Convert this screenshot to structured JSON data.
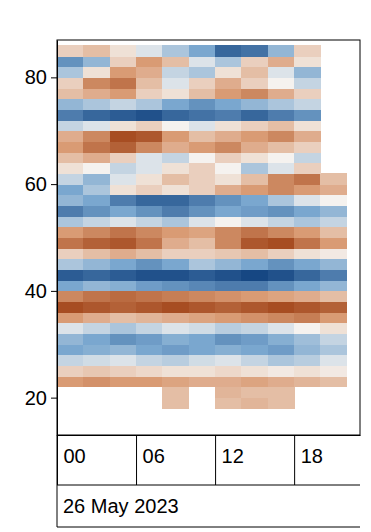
{
  "chart_data": {
    "type": "heatmap",
    "xlabel": "26 May 2023",
    "xlim": [
      0,
      23
    ],
    "xticks": [
      {
        "value": 0,
        "label": "00"
      },
      {
        "value": 6,
        "label": "06"
      },
      {
        "value": 12,
        "label": "12"
      },
      {
        "value": 18,
        "label": "18"
      }
    ],
    "ylim": [
      13,
      87
    ],
    "yticks": [
      20,
      40,
      60,
      80
    ],
    "zlim": [
      -1,
      1
    ],
    "x": [
      1,
      3,
      5,
      7,
      9,
      11,
      13,
      15,
      17,
      19,
      21
    ],
    "y": [
      19,
      21,
      23,
      25,
      27,
      29,
      31,
      33,
      35,
      37,
      39,
      41,
      43,
      45,
      47,
      49,
      51,
      53,
      55,
      57,
      59,
      61,
      63,
      65,
      67,
      69,
      71,
      73,
      75,
      77,
      79,
      81,
      83,
      85
    ],
    "values": [
      [
        null,
        null,
        null,
        null,
        0.3,
        null,
        0.3,
        0.35,
        0.3,
        null,
        null
      ],
      [
        null,
        null,
        null,
        null,
        0.3,
        null,
        0.35,
        0.3,
        0.3,
        null,
        null
      ],
      [
        0.5,
        0.55,
        0.5,
        0.5,
        0.45,
        0.4,
        0.4,
        0.45,
        0.4,
        0.35,
        0.3
      ],
      [
        0.2,
        0.25,
        0.2,
        0.15,
        0.1,
        0.1,
        0.15,
        0.1,
        0.05,
        0.1,
        0.05
      ],
      [
        -0.2,
        -0.15,
        -0.1,
        -0.2,
        -0.25,
        -0.15,
        -0.1,
        -0.2,
        -0.3,
        -0.25,
        -0.1
      ],
      [
        -0.5,
        -0.45,
        -0.4,
        -0.5,
        -0.55,
        -0.5,
        -0.45,
        -0.5,
        -0.55,
        -0.4,
        -0.3
      ],
      [
        -0.4,
        -0.5,
        -0.6,
        -0.55,
        -0.45,
        -0.5,
        -0.6,
        -0.55,
        -0.45,
        -0.35,
        -0.2
      ],
      [
        -0.1,
        -0.2,
        -0.3,
        -0.2,
        -0.1,
        -0.15,
        -0.25,
        -0.2,
        -0.1,
        0,
        0.1
      ],
      [
        0.5,
        0.4,
        0.3,
        0.35,
        0.4,
        0.45,
        0.5,
        0.55,
        0.6,
        0.65,
        0.5
      ],
      [
        0.9,
        0.85,
        0.8,
        0.85,
        0.9,
        0.85,
        0.8,
        0.85,
        0.9,
        0.85,
        0.8
      ],
      [
        0.6,
        0.7,
        0.75,
        0.7,
        0.65,
        0.6,
        0.55,
        0.5,
        0.45,
        0.4,
        0.3
      ],
      [
        -0.5,
        -0.4,
        -0.45,
        -0.55,
        -0.6,
        -0.65,
        -0.7,
        -0.7,
        -0.6,
        -0.5,
        -0.4
      ],
      [
        -0.85,
        -0.8,
        -0.85,
        -0.9,
        -0.9,
        -0.85,
        -0.9,
        -0.95,
        -0.9,
        -0.8,
        -0.7
      ],
      [
        -0.3,
        -0.4,
        -0.5,
        -0.6,
        -0.5,
        -0.3,
        -0.4,
        -0.5,
        -0.6,
        -0.5,
        -0.4
      ],
      [
        0.2,
        0.3,
        0.4,
        0.3,
        0.2,
        0.2,
        0.25,
        0.3,
        0.2,
        0.1,
        0.05
      ],
      [
        0.7,
        0.8,
        0.85,
        0.7,
        0.4,
        0.3,
        0.6,
        0.85,
        0.9,
        0.7,
        0.5
      ],
      [
        0.5,
        0.6,
        0.7,
        0.6,
        0.5,
        0.45,
        0.6,
        0.7,
        0.6,
        0.5,
        0.3
      ],
      [
        -0.3,
        -0.2,
        -0.1,
        -0.2,
        -0.3,
        -0.1,
        0,
        -0.1,
        -0.2,
        -0.3,
        -0.2
      ],
      [
        -0.7,
        -0.6,
        -0.5,
        -0.6,
        -0.7,
        -0.6,
        -0.5,
        -0.55,
        -0.6,
        -0.5,
        -0.4
      ],
      [
        -0.4,
        -0.5,
        -0.7,
        -0.8,
        -0.8,
        -0.7,
        -0.6,
        -0.5,
        -0.3,
        -0.1,
        0
      ],
      [
        -0.5,
        -0.3,
        0.1,
        0.2,
        0.1,
        0.2,
        0.4,
        0.5,
        0.6,
        0.5,
        0.4
      ],
      [
        -0.2,
        -0.4,
        -0.1,
        0.1,
        0.3,
        0.2,
        0.1,
        0.3,
        0.6,
        0.7,
        0.3
      ],
      [
        0.1,
        0,
        -0.2,
        -0.1,
        0.1,
        0.2,
        0,
        -0.3,
        -0.1,
        0.2,
        null
      ],
      [
        0.3,
        0.4,
        0.2,
        -0.1,
        -0.2,
        0,
        0.2,
        0.1,
        0,
        -0.2,
        null
      ],
      [
        0.5,
        0.7,
        0.8,
        0.6,
        0.4,
        0.5,
        0.6,
        0.4,
        0.3,
        0.2,
        null
      ],
      [
        0.4,
        0.6,
        0.9,
        0.85,
        0.5,
        0.3,
        0.4,
        0.5,
        0.6,
        0.4,
        null
      ],
      [
        -0.2,
        -0.1,
        0.1,
        0.2,
        0,
        -0.1,
        0.1,
        0.2,
        0.3,
        0.1,
        null
      ],
      [
        -0.7,
        -0.8,
        -0.85,
        -0.9,
        -0.8,
        -0.75,
        -0.7,
        -0.8,
        -0.7,
        -0.6,
        null
      ],
      [
        -0.4,
        -0.3,
        -0.2,
        -0.3,
        -0.5,
        -0.6,
        -0.5,
        -0.4,
        -0.3,
        -0.2,
        null
      ],
      [
        0.3,
        0.4,
        0.5,
        0.2,
        0.1,
        0.3,
        0.5,
        0.6,
        0.4,
        0.2,
        null
      ],
      [
        0.2,
        0.6,
        0.7,
        0.3,
        -0.1,
        0.2,
        0.4,
        0.2,
        0,
        -0.2,
        null
      ],
      [
        -0.3,
        0.1,
        0.5,
        0.4,
        -0.2,
        -0.3,
        0.1,
        0.3,
        -0.1,
        -0.4,
        null
      ],
      [
        -0.6,
        -0.4,
        0.2,
        0.5,
        0.3,
        -0.1,
        -0.3,
        0.2,
        0.4,
        0.1,
        null
      ],
      [
        0.2,
        0.3,
        0.1,
        -0.1,
        -0.3,
        -0.5,
        -0.8,
        -0.75,
        -0.4,
        0.2,
        null
      ]
    ]
  }
}
